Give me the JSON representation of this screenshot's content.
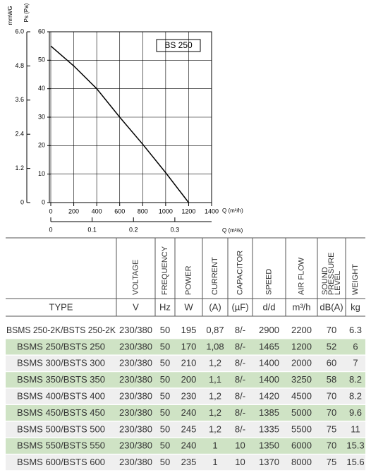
{
  "chart_data": {
    "type": "line",
    "x": [
      0,
      200,
      400,
      600,
      800,
      1000,
      1200
    ],
    "series": [
      {
        "color": "#000000",
        "values": [
          55,
          48,
          40,
          30,
          20.5,
          10.5,
          0
        ]
      }
    ],
    "xlim": [
      0,
      1400
    ],
    "xticks": [
      0,
      200,
      400,
      600,
      800,
      1000,
      1200,
      1400
    ],
    "ylim": [
      0,
      60
    ],
    "yticks": [
      0,
      10,
      20,
      30,
      40,
      50,
      60
    ],
    "y2lim": [
      0,
      6
    ],
    "y2ticks": [
      0,
      1.2,
      2.4,
      3.6,
      4.8,
      {
        "value": 6,
        "label": "6.0"
      }
    ],
    "x2lim": [
      0,
      0.3889
    ],
    "x2ticks": [
      0,
      0.1,
      0.2,
      0.3
    ],
    "x_label": "Q (m³/h)",
    "x2_label": "Q (m³/s)",
    "y_label": "Ps (Pa)",
    "y2_label": "mmWG",
    "annotation": "BS 250",
    "grid": true
  },
  "table": {
    "headers": [
      [
        "VOLTAGE"
      ],
      [
        "FREQUENCY"
      ],
      [
        "POWER"
      ],
      [
        "CURRENT"
      ],
      [
        "CAPACITOR"
      ],
      [
        "SPEED"
      ],
      [
        "AIR FLOW"
      ],
      [
        "SOUND",
        "PRESSURE",
        "LEVEL"
      ],
      [
        "WEIGHT"
      ]
    ],
    "units": [
      "TYPE",
      "V",
      "Hz",
      "W",
      "(A)",
      "(µF)",
      "d/d",
      "m³/h",
      "dB(A)",
      "kg"
    ],
    "rows": [
      [
        "BSMS 250-2K/BSTS 250-2K",
        "230/380",
        "50",
        "195",
        "0,87",
        "8/-",
        "2900",
        "2200",
        "70",
        "6.3"
      ],
      [
        "BSMS 250/BSTS 250",
        "230/380",
        "50",
        "170",
        "1,08",
        "8/-",
        "1465",
        "1200",
        "52",
        "6"
      ],
      [
        "BSMS 300/BSTS 300",
        "230/380",
        "50",
        "210",
        "1,2",
        "8/-",
        "1400",
        "2000",
        "60",
        "7"
      ],
      [
        "BSMS 350/BSTS 350",
        "230/380",
        "50",
        "200",
        "1,1",
        "8/-",
        "1400",
        "3250",
        "58",
        "8.2"
      ],
      [
        "BSMS 400/BSTS 400",
        "230/380",
        "50",
        "230",
        "1,2",
        "8/-",
        "1420",
        "4500",
        "70",
        "8.2"
      ],
      [
        "BSMS 450/BSTS 450",
        "230/380",
        "50",
        "240",
        "1,2",
        "8/-",
        "1385",
        "5000",
        "70",
        "9.6"
      ],
      [
        "BSMS 500/BSTS 500",
        "230/380",
        "50",
        "245",
        "1,2",
        "8/-",
        "1335",
        "5500",
        "75",
        "11"
      ],
      [
        "BSMS 550/BSTS 550",
        "230/380",
        "50",
        "240",
        "1",
        "10",
        "1350",
        "6000",
        "70",
        "15.3"
      ],
      [
        "BSMS 600/BSTS 600",
        "230/380",
        "50",
        "235",
        "1",
        "10",
        "1370",
        "8000",
        "75",
        "15.6"
      ]
    ]
  }
}
